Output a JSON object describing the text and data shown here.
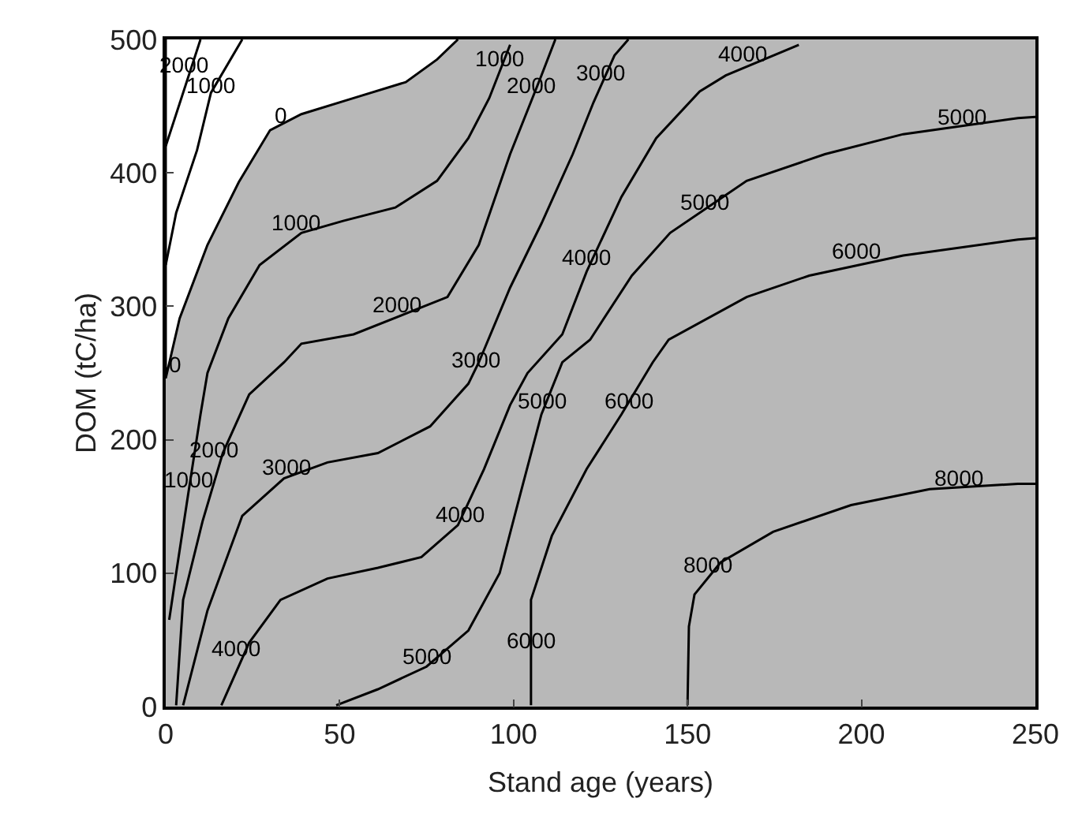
{
  "chart_data": {
    "type": "line",
    "xlabel": "Stand age (years)",
    "ylabel": "DOM (tC/ha)",
    "xlim": [
      0,
      250
    ],
    "ylim": [
      0,
      500
    ],
    "xticks": [
      0,
      50,
      100,
      150,
      200,
      250
    ],
    "yticks": [
      0,
      100,
      200,
      300,
      400,
      500
    ],
    "grid": false,
    "marker": "none",
    "line_style": "solid",
    "bands": [
      {
        "axis": "x",
        "from": 0,
        "to": 250,
        "color": "#b8b8b8"
      }
    ],
    "series": [
      {
        "type": "area",
        "color": "#ffffff",
        "x": [
          0,
          0,
          4,
          12,
          21,
          30,
          39,
          54,
          69,
          78,
          84
        ],
        "values": [
          500,
          246,
          291,
          346,
          393,
          432,
          444,
          456,
          468,
          485,
          500
        ]
      },
      {
        "color": "#000000",
        "x": [
          0,
          3,
          9,
          13,
          22
        ],
        "values": [
          331,
          370,
          417,
          460,
          500
        ]
      },
      {
        "color": "#000000",
        "x": [
          0,
          10
        ],
        "values": [
          420,
          500
        ]
      },
      {
        "color": "#000000",
        "x": [
          1,
          3,
          6.5,
          10,
          12,
          18,
          27,
          39,
          51,
          66,
          78,
          87,
          93,
          99
        ],
        "values": [
          65,
          100,
          160,
          219,
          250,
          291,
          331,
          355,
          364,
          374,
          394,
          426,
          456,
          496
        ]
      },
      {
        "color": "#000000",
        "x": [
          3,
          5,
          10.6,
          16.4,
          24,
          34,
          39,
          54,
          81,
          90,
          99,
          108,
          112
        ],
        "values": [
          1,
          80,
          139,
          190,
          234,
          258,
          272,
          279,
          307,
          346,
          414,
          473,
          500
        ]
      },
      {
        "color": "#000000",
        "x": [
          5,
          12,
          22,
          34,
          46.5,
          61,
          76,
          87,
          90,
          99,
          108,
          117,
          123,
          129,
          133
        ],
        "values": [
          1,
          72,
          143,
          171,
          183,
          190,
          210,
          242,
          258,
          314,
          362,
          414,
          453,
          488,
          500
        ]
      },
      {
        "color": "#000000",
        "x": [
          16,
          24,
          33,
          46.5,
          61,
          73.5,
          84,
          91.5,
          99,
          104,
          114,
          121,
          131,
          141,
          153.5,
          161,
          182
        ],
        "values": [
          1,
          48,
          80,
          96,
          104,
          112,
          136,
          178,
          226,
          250,
          279,
          326,
          382,
          426,
          461,
          473,
          496
        ]
      },
      {
        "color": "#000000",
        "x": [
          49,
          61,
          75,
          87,
          96,
          102,
          108,
          114,
          122,
          134,
          145,
          167,
          189.5,
          212,
          245,
          250
        ],
        "values": [
          1,
          13,
          30,
          57,
          100,
          160,
          219,
          258,
          275,
          323,
          355,
          394,
          414,
          429,
          441,
          442
        ]
      },
      {
        "color": "#000000",
        "x": [
          105,
          105,
          111,
          121,
          131,
          140,
          144.6,
          167,
          185,
          212,
          245,
          250
        ],
        "values": [
          1,
          80,
          128,
          178,
          219,
          258,
          275,
          307,
          323,
          338,
          350,
          351
        ]
      },
      {
        "color": "#000000",
        "x": [
          150,
          150.4,
          152,
          159.5,
          174.6,
          197,
          219.6,
          245,
          250
        ],
        "values": [
          1,
          60,
          84,
          108,
          131,
          151,
          163,
          167,
          167
        ]
      }
    ],
    "annotations": [
      {
        "text": "0",
        "x": 0,
        "y": 246
      },
      {
        "text": "0",
        "x": 33,
        "y": 433
      },
      {
        "text": "2000",
        "x": 5,
        "y": 470
      },
      {
        "text": "1000",
        "x": 13,
        "y": 455
      },
      {
        "text": "1000",
        "x": 6.5,
        "y": 160
      },
      {
        "text": "2000",
        "x": 14,
        "y": 182
      },
      {
        "text": "1000",
        "x": 37.5,
        "y": 352
      },
      {
        "text": "1000",
        "x": 96,
        "y": 475
      },
      {
        "text": "2000",
        "x": 66.3,
        "y": 291
      },
      {
        "text": "2000",
        "x": 105,
        "y": 455
      },
      {
        "text": "3000",
        "x": 34.6,
        "y": 169
      },
      {
        "text": "3000",
        "x": 89,
        "y": 250
      },
      {
        "text": "3000",
        "x": 125,
        "y": 465
      },
      {
        "text": "4000",
        "x": 20,
        "y": 33
      },
      {
        "text": "4000",
        "x": 84.8,
        "y": 134
      },
      {
        "text": "4000",
        "x": 121,
        "y": 326
      },
      {
        "text": "4000",
        "x": 166,
        "y": 479
      },
      {
        "text": "5000",
        "x": 75,
        "y": 27
      },
      {
        "text": "5000",
        "x": 108,
        "y": 219
      },
      {
        "text": "5000",
        "x": 155,
        "y": 368
      },
      {
        "text": "5000",
        "x": 229,
        "y": 431
      },
      {
        "text": "6000",
        "x": 105,
        "y": 39
      },
      {
        "text": "6000",
        "x": 133,
        "y": 219
      },
      {
        "text": "6000",
        "x": 198.5,
        "y": 331
      },
      {
        "text": "8000",
        "x": 156,
        "y": 96
      },
      {
        "text": "8000",
        "x": 228,
        "y": 161
      }
    ]
  }
}
